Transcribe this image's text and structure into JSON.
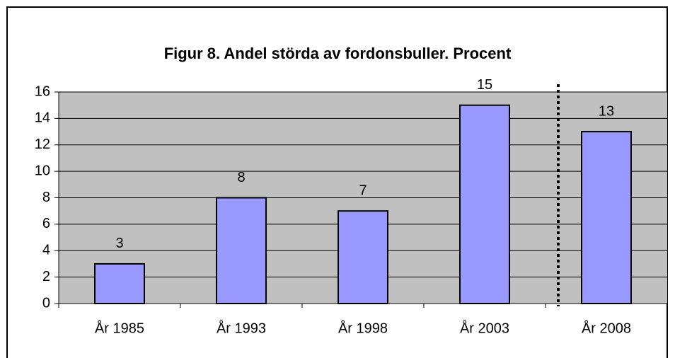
{
  "chart_data": {
    "type": "bar",
    "title": "Figur 8. Andel störda av fordonsbuller. Procent",
    "categories": [
      "År 1985",
      "År 1993",
      "År 1998",
      "År 2003",
      "År 2008"
    ],
    "values": [
      3,
      8,
      7,
      15,
      13
    ],
    "color": "#9999ff",
    "ylim": [
      0,
      16
    ],
    "yticks": [
      0,
      2,
      4,
      6,
      8,
      10,
      12,
      14,
      16
    ],
    "grid": true
  }
}
